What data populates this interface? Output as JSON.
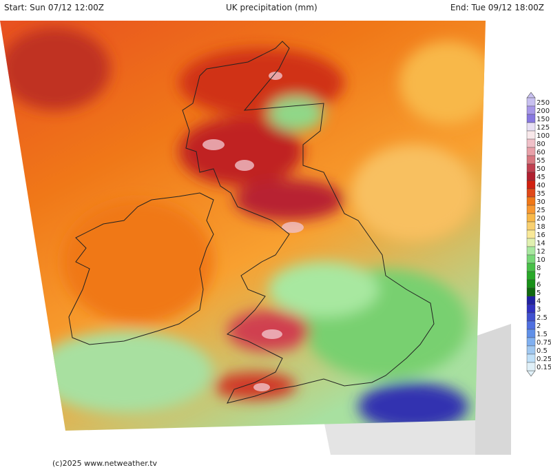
{
  "header": {
    "start": "Start: Sun 07/12 12:00Z",
    "title": "UK precipitation (mm)",
    "end": "End: Tue 09/12 18:00Z"
  },
  "legend": {
    "labels": [
      "250",
      "200",
      "150",
      "125",
      "100",
      "80",
      "60",
      "55",
      "50",
      "45",
      "40",
      "35",
      "30",
      "25",
      "20",
      "18",
      "16",
      "14",
      "12",
      "10",
      "8",
      "7",
      "6",
      "5",
      "4",
      "3",
      "2.5",
      "2",
      "1.5",
      "0.75",
      "0.5",
      "0.25",
      "0.15"
    ],
    "colors": [
      "#c8c0f0",
      "#a898e8",
      "#8878e0",
      "#e8e0f4",
      "#f8e8ea",
      "#f0c0c8",
      "#e8a0a8",
      "#d87880",
      "#c04050",
      "#b02030",
      "#d02010",
      "#e04818",
      "#f07818",
      "#f89830",
      "#f8b848",
      "#f8d070",
      "#f8e898",
      "#e0f0b0",
      "#a8e8a0",
      "#78d878",
      "#48c048",
      "#28a828",
      "#189018",
      "#106810",
      "#2020a0",
      "#3030c0",
      "#4050d0",
      "#5070e0",
      "#6090e8",
      "#80b0f0",
      "#a0c8f0",
      "#c0e0f8",
      "#e0f0f8"
    ]
  },
  "footer": "(c)2025 www.netweather.tv"
}
